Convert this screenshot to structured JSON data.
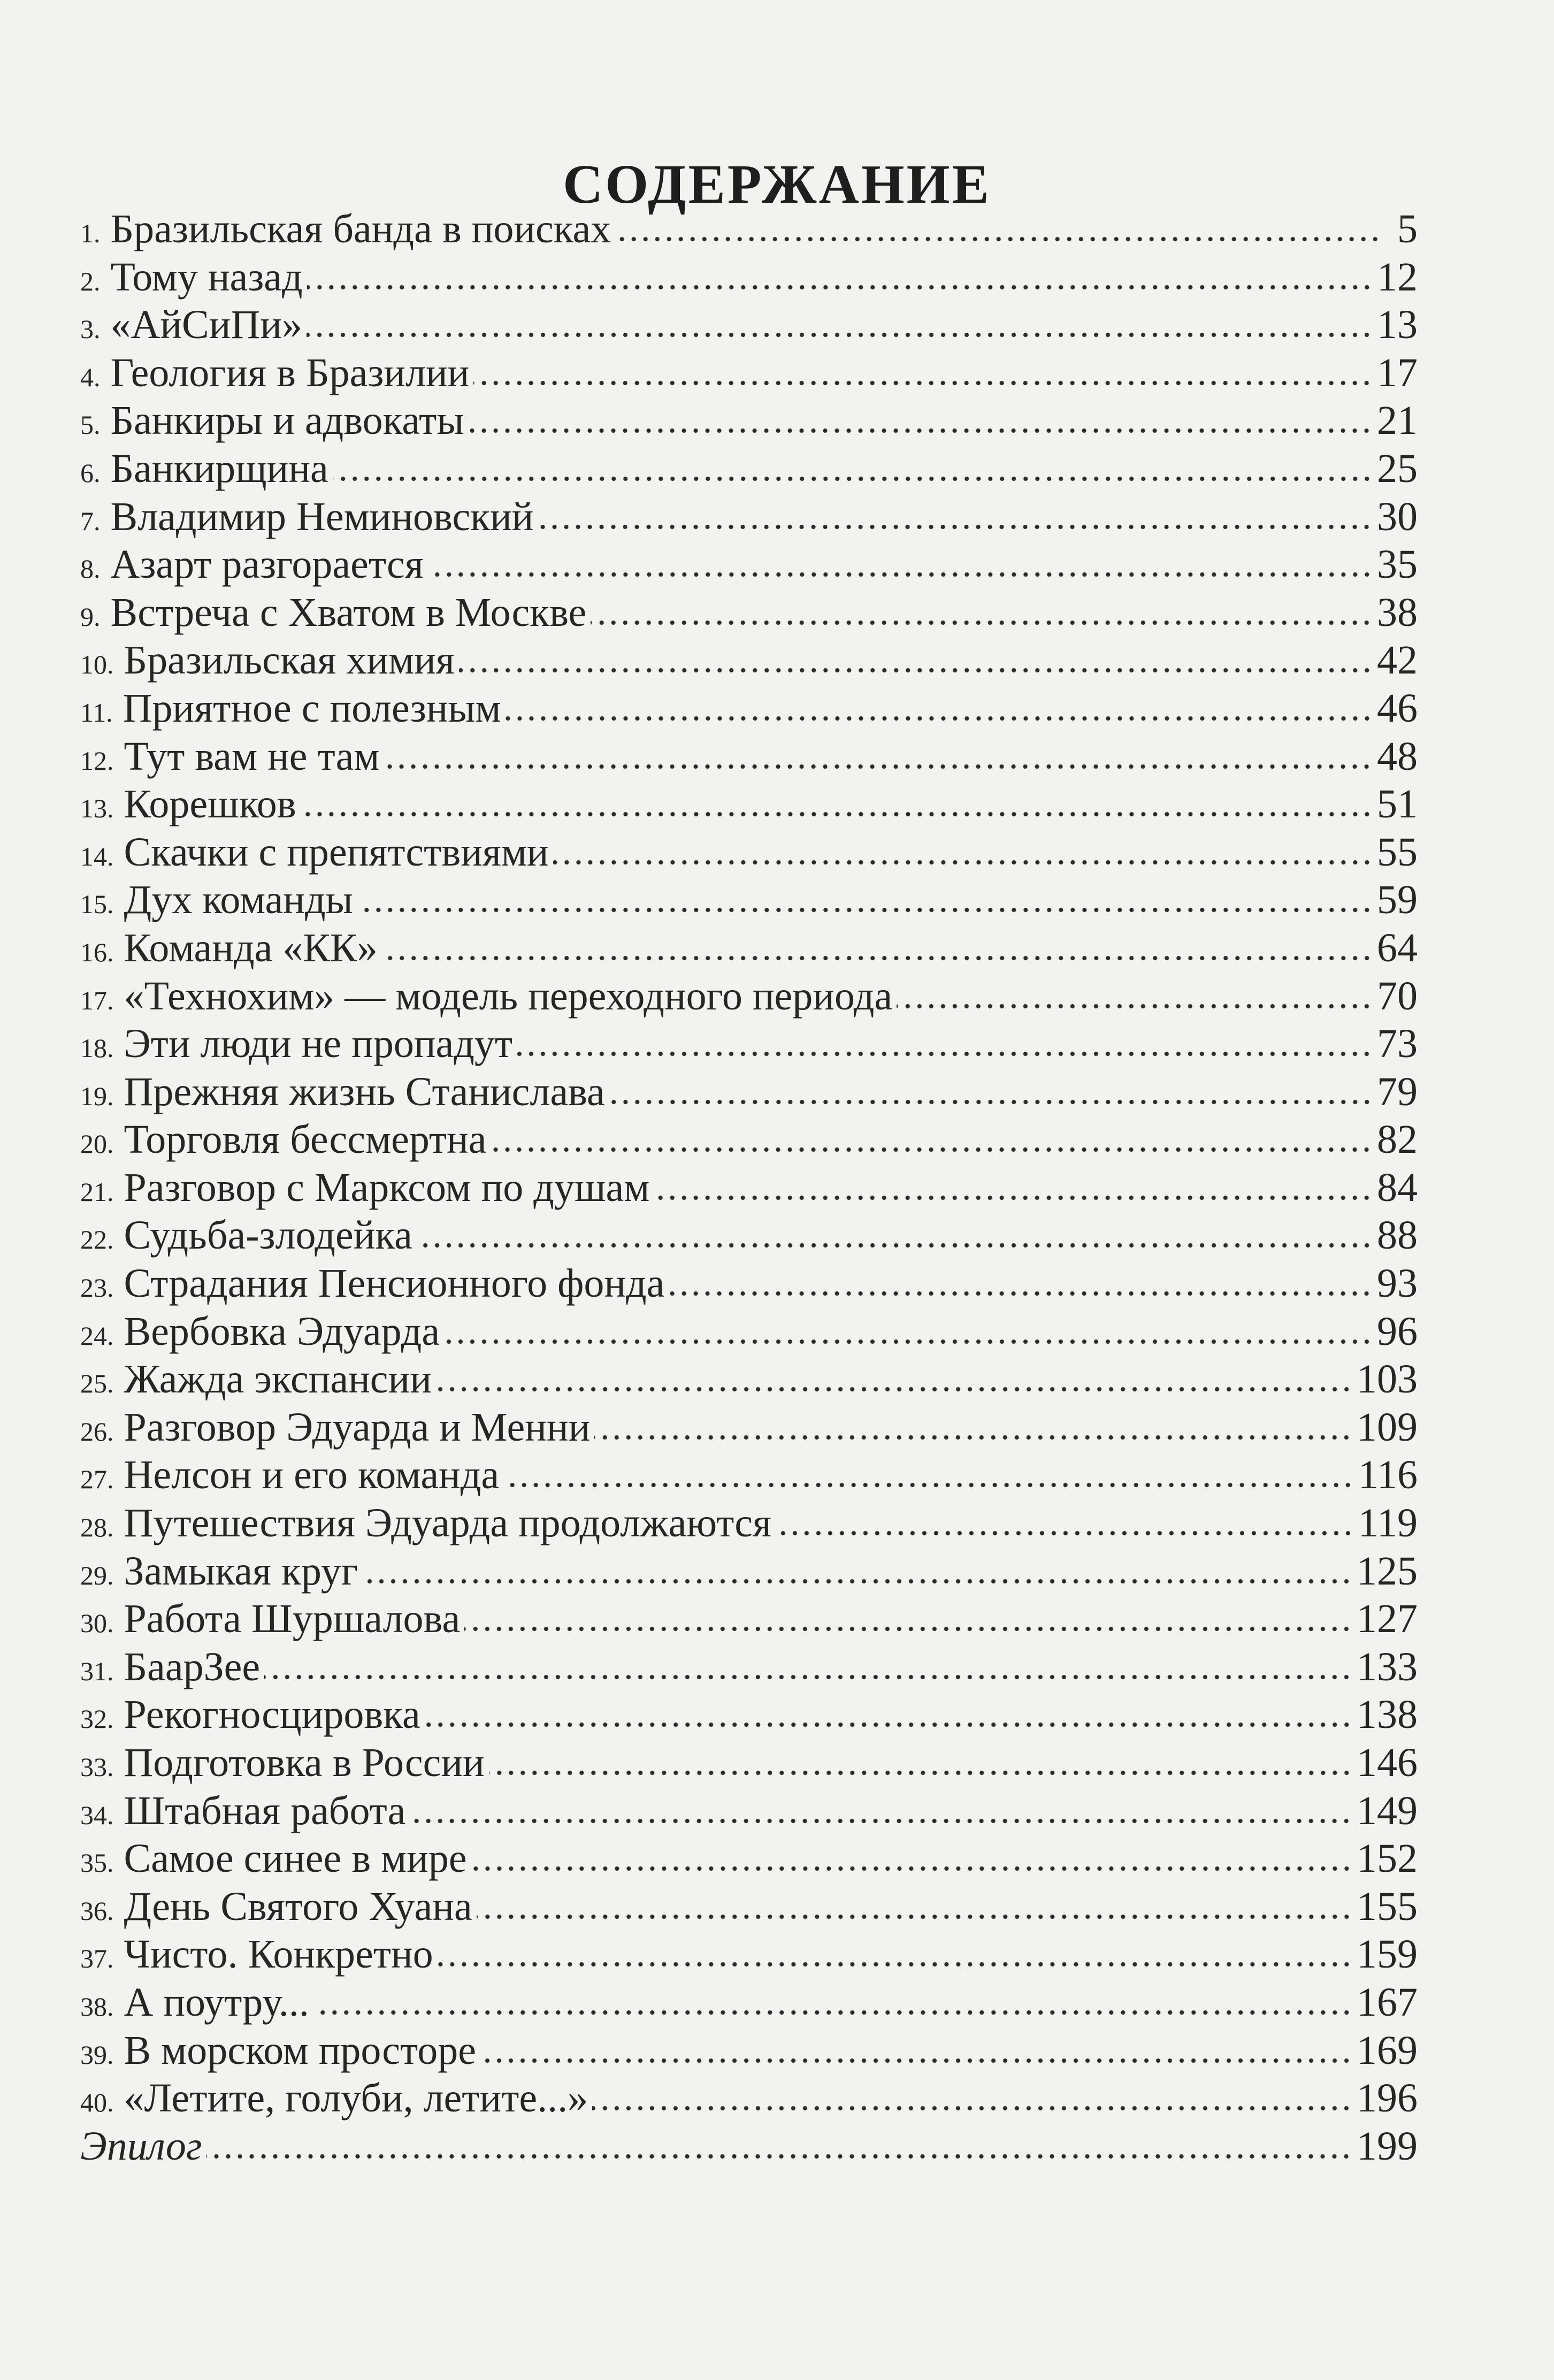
{
  "title": "СОДЕРЖАНИЕ",
  "entries": [
    {
      "num": "1.",
      "label": "Бразильская банда в поисках",
      "page": "5"
    },
    {
      "num": "2.",
      "label": "Тому назад",
      "page": "12"
    },
    {
      "num": "3.",
      "label": "«АйСиПи»",
      "page": "13"
    },
    {
      "num": "4.",
      "label": "Геология в Бразилии",
      "page": "17"
    },
    {
      "num": "5.",
      "label": "Банкиры и адвокаты",
      "page": "21"
    },
    {
      "num": "6.",
      "label": "Банкирщина",
      "page": "25"
    },
    {
      "num": "7.",
      "label": "Владимир Неминовский",
      "page": "30"
    },
    {
      "num": "8.",
      "label": "Азарт разгорается",
      "page": "35"
    },
    {
      "num": "9.",
      "label": "Встреча с Хватом в Москве",
      "page": "38"
    },
    {
      "num": "10.",
      "label": "Бразильская химия",
      "page": "42"
    },
    {
      "num": "11.",
      "label": "Приятное с полезным",
      "page": "46"
    },
    {
      "num": "12.",
      "label": "Тут вам не там",
      "page": "48"
    },
    {
      "num": "13.",
      "label": "Корешков",
      "page": "51"
    },
    {
      "num": "14.",
      "label": "Скачки с препятствиями",
      "page": "55"
    },
    {
      "num": "15.",
      "label": "Дух команды",
      "page": "59"
    },
    {
      "num": "16.",
      "label": "Команда «КК»",
      "page": "64"
    },
    {
      "num": "17.",
      "label": "«Технохим» — модель переходного периода",
      "page": "70"
    },
    {
      "num": "18.",
      "label": "Эти люди не пропадут",
      "page": "73"
    },
    {
      "num": "19.",
      "label": "Прежняя жизнь Станислава",
      "page": "79"
    },
    {
      "num": "20.",
      "label": "Торговля бессмертна",
      "page": "82"
    },
    {
      "num": "21.",
      "label": "Разговор с Марксом по душам",
      "page": "84"
    },
    {
      "num": "22.",
      "label": "Судьба-злодейка",
      "page": "88"
    },
    {
      "num": "23.",
      "label": "Страдания Пенсионного фонда",
      "page": "93"
    },
    {
      "num": "24.",
      "label": "Вербовка Эдуарда",
      "page": "96"
    },
    {
      "num": "25.",
      "label": "Жажда экспансии",
      "page": "103"
    },
    {
      "num": "26.",
      "label": "Разговор Эдуарда и Менни",
      "page": "109"
    },
    {
      "num": "27.",
      "label": "Нелсон и его команда",
      "page": "116"
    },
    {
      "num": "28.",
      "label": "Путешествия Эдуарда продолжаются",
      "page": "119"
    },
    {
      "num": "29.",
      "label": "Замыкая круг",
      "page": "125"
    },
    {
      "num": "30.",
      "label": "Работа Шуршалова",
      "page": "127"
    },
    {
      "num": "31.",
      "label": "БаарЗее",
      "page": "133"
    },
    {
      "num": "32.",
      "label": "Рекогносцировка",
      "page": "138"
    },
    {
      "num": "33.",
      "label": "Подготовка в России",
      "page": "146"
    },
    {
      "num": "34.",
      "label": "Штабная работа",
      "page": "149"
    },
    {
      "num": "35.",
      "label": "Самое синее в мире",
      "page": "152"
    },
    {
      "num": "36.",
      "label": "День Святого Хуана",
      "page": "155"
    },
    {
      "num": "37.",
      "label": "Чисто. Конкретно",
      "page": "159"
    },
    {
      "num": "38.",
      "label": "А поутру...",
      "page": "167"
    },
    {
      "num": "39.",
      "label": "В морском просторе",
      "page": "169"
    },
    {
      "num": "40.",
      "label": "«Летите, голуби, летите...»",
      "page": "196"
    },
    {
      "num": "",
      "label": "Эпилог",
      "page": "199",
      "italic": true
    }
  ]
}
